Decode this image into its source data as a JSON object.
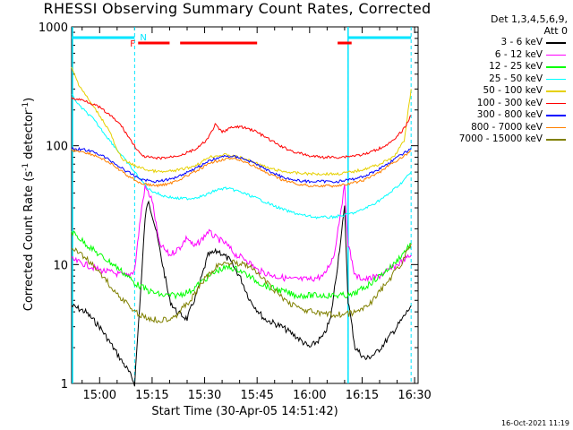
{
  "chart_data": {
    "type": "line",
    "title": "RHESSI Observing Summary Count Rates, Corrected",
    "xlabel": "Start Time (30-Apr-05 14:51:42)",
    "ylabel_main": "Corrected Count Rate (s",
    "ylabel_sup1": "-1",
    "ylabel_mid": " detector",
    "ylabel_sup2": "-1",
    "ylabel_end": ")",
    "detectors": "Det 1,3,4,5,6,9,",
    "attenuator": "Att 0",
    "timestamp": "16-Oct-2021 11:19",
    "x_range": [
      "14:52",
      "16:31"
    ],
    "y_scale": "log",
    "ylim": [
      1,
      1000
    ],
    "x_ticks": [
      "15:00",
      "15:15",
      "15:30",
      "15:45",
      "16:00",
      "16:15",
      "16:30"
    ],
    "y_ticks": [
      "1",
      "10",
      "100",
      "1000"
    ],
    "flags": {
      "night_label": "N",
      "flare_label": "F",
      "night_intervals": [
        [
          "14:52",
          "15:10"
        ],
        [
          "16:11",
          "16:29"
        ]
      ],
      "flare_intervals": [
        [
          "15:11",
          "15:20"
        ],
        [
          "15:23",
          "15:45"
        ],
        [
          "16:08",
          "16:12"
        ]
      ],
      "saa_boundaries": [
        "15:10",
        "16:11",
        "16:29"
      ]
    },
    "series": [
      {
        "name": "3 - 6 keV",
        "color": "#000000",
        "points": [
          [
            "14:52",
            4.5
          ],
          [
            "14:56",
            4
          ],
          [
            "15:00",
            3
          ],
          [
            "15:03",
            2.2
          ],
          [
            "15:06",
            1.6
          ],
          [
            "15:08",
            1.3
          ],
          [
            "15:10",
            1
          ],
          [
            "15:12",
            8
          ],
          [
            "15:13",
            25
          ],
          [
            "15:14",
            35
          ],
          [
            "15:16",
            20
          ],
          [
            "15:18",
            10
          ],
          [
            "15:20",
            5
          ],
          [
            "15:22",
            4
          ],
          [
            "15:25",
            3.5
          ],
          [
            "15:28",
            6
          ],
          [
            "15:31",
            12
          ],
          [
            "15:34",
            13
          ],
          [
            "15:37",
            11
          ],
          [
            "15:40",
            8
          ],
          [
            "15:43",
            5
          ],
          [
            "15:47",
            3.5
          ],
          [
            "15:52",
            3
          ],
          [
            "15:56",
            2.5
          ],
          [
            "16:00",
            2
          ],
          [
            "16:04",
            2.5
          ],
          [
            "16:06",
            3.5
          ],
          [
            "16:08",
            10
          ],
          [
            "16:10",
            30
          ],
          [
            "16:11",
            5
          ],
          [
            "16:13",
            2
          ],
          [
            "16:16",
            1.6
          ],
          [
            "16:19",
            1.8
          ],
          [
            "16:22",
            2.3
          ],
          [
            "16:25",
            3
          ],
          [
            "16:29",
            4.5
          ]
        ]
      },
      {
        "name": "6 - 12 keV",
        "color": "#ff00ff",
        "points": [
          [
            "14:52",
            11
          ],
          [
            "14:56",
            10
          ],
          [
            "15:00",
            9
          ],
          [
            "15:04",
            8.5
          ],
          [
            "15:08",
            8
          ],
          [
            "15:10",
            9
          ],
          [
            "15:12",
            30
          ],
          [
            "15:13",
            45
          ],
          [
            "15:15",
            35
          ],
          [
            "15:17",
            15
          ],
          [
            "15:20",
            12
          ],
          [
            "15:23",
            14
          ],
          [
            "15:25",
            17
          ],
          [
            "15:27",
            14
          ],
          [
            "15:29",
            16
          ],
          [
            "15:31",
            19
          ],
          [
            "15:33",
            17
          ],
          [
            "15:36",
            15
          ],
          [
            "15:39",
            12
          ],
          [
            "15:42",
            11
          ],
          [
            "15:45",
            9
          ],
          [
            "15:50",
            8
          ],
          [
            "15:55",
            7.5
          ],
          [
            "16:00",
            7.5
          ],
          [
            "16:04",
            8
          ],
          [
            "16:07",
            12
          ],
          [
            "16:09",
            30
          ],
          [
            "16:10",
            45
          ],
          [
            "16:11",
            15
          ],
          [
            "16:13",
            8
          ],
          [
            "16:16",
            7.5
          ],
          [
            "16:20",
            8
          ],
          [
            "16:24",
            9.5
          ],
          [
            "16:29",
            12
          ]
        ]
      },
      {
        "name": "12 - 25 keV",
        "color": "#00ff00",
        "points": [
          [
            "14:52",
            19
          ],
          [
            "14:56",
            15
          ],
          [
            "15:00",
            12
          ],
          [
            "15:04",
            10
          ],
          [
            "15:08",
            8
          ],
          [
            "15:10",
            7
          ],
          [
            "15:14",
            6
          ],
          [
            "15:18",
            5.5
          ],
          [
            "15:22",
            5.5
          ],
          [
            "15:26",
            6
          ],
          [
            "15:30",
            7.5
          ],
          [
            "15:34",
            9
          ],
          [
            "15:37",
            9.5
          ],
          [
            "15:40",
            9
          ],
          [
            "15:44",
            7.5
          ],
          [
            "15:48",
            6.5
          ],
          [
            "15:52",
            6
          ],
          [
            "15:56",
            5.5
          ],
          [
            "16:00",
            5.5
          ],
          [
            "16:04",
            5.5
          ],
          [
            "16:08",
            5.5
          ],
          [
            "16:12",
            5.5
          ],
          [
            "16:16",
            6.5
          ],
          [
            "16:20",
            8
          ],
          [
            "16:24",
            10
          ],
          [
            "16:29",
            15
          ]
        ]
      },
      {
        "name": "25 - 50 keV",
        "color": "#00ffff",
        "points": [
          [
            "14:52",
            270
          ],
          [
            "14:54",
            220
          ],
          [
            "14:58",
            170
          ],
          [
            "15:02",
            120
          ],
          [
            "15:06",
            85
          ],
          [
            "15:10",
            60
          ],
          [
            "15:14",
            43
          ],
          [
            "15:18",
            38
          ],
          [
            "15:22",
            36
          ],
          [
            "15:26",
            36
          ],
          [
            "15:30",
            38
          ],
          [
            "15:33",
            42
          ],
          [
            "15:36",
            44
          ],
          [
            "15:39",
            42
          ],
          [
            "15:42",
            39
          ],
          [
            "15:46",
            35
          ],
          [
            "15:50",
            31
          ],
          [
            "15:54",
            28
          ],
          [
            "15:58",
            26
          ],
          [
            "16:02",
            25
          ],
          [
            "16:06",
            25
          ],
          [
            "16:10",
            26
          ],
          [
            "16:14",
            28
          ],
          [
            "16:18",
            32
          ],
          [
            "16:22",
            38
          ],
          [
            "16:26",
            48
          ],
          [
            "16:29",
            60
          ]
        ]
      },
      {
        "name": "50 - 100 keV",
        "color": "#e6d000",
        "points": [
          [
            "14:52",
            450
          ],
          [
            "14:54",
            330
          ],
          [
            "14:57",
            240
          ],
          [
            "15:00",
            180
          ],
          [
            "15:03",
            130
          ],
          [
            "15:05",
            90
          ],
          [
            "15:07",
            75
          ],
          [
            "15:10",
            68
          ],
          [
            "15:14",
            62
          ],
          [
            "15:18",
            60
          ],
          [
            "15:22",
            62
          ],
          [
            "15:26",
            66
          ],
          [
            "15:29",
            72
          ],
          [
            "15:31",
            80
          ],
          [
            "15:33",
            82
          ],
          [
            "15:36",
            84
          ],
          [
            "15:40",
            80
          ],
          [
            "15:44",
            73
          ],
          [
            "15:48",
            65
          ],
          [
            "15:52",
            61
          ],
          [
            "15:56",
            59
          ],
          [
            "16:00",
            58
          ],
          [
            "16:04",
            58
          ],
          [
            "16:08",
            58
          ],
          [
            "16:12",
            60
          ],
          [
            "16:16",
            64
          ],
          [
            "16:20",
            70
          ],
          [
            "16:24",
            80
          ],
          [
            "16:27",
            110
          ],
          [
            "16:29",
            300
          ]
        ]
      },
      {
        "name": "100 - 300 keV",
        "color": "#ff0000",
        "points": [
          [
            "14:52",
            250
          ],
          [
            "14:56",
            240
          ],
          [
            "15:00",
            210
          ],
          [
            "15:03",
            180
          ],
          [
            "15:06",
            150
          ],
          [
            "15:09",
            110
          ],
          [
            "15:12",
            82
          ],
          [
            "15:16",
            78
          ],
          [
            "15:20",
            80
          ],
          [
            "15:24",
            85
          ],
          [
            "15:28",
            95
          ],
          [
            "15:31",
            115
          ],
          [
            "15:33",
            150
          ],
          [
            "15:35",
            130
          ],
          [
            "15:37",
            140
          ],
          [
            "15:40",
            145
          ],
          [
            "15:44",
            135
          ],
          [
            "15:48",
            115
          ],
          [
            "15:52",
            98
          ],
          [
            "15:56",
            88
          ],
          [
            "16:00",
            82
          ],
          [
            "16:04",
            80
          ],
          [
            "16:08",
            80
          ],
          [
            "16:12",
            82
          ],
          [
            "16:16",
            85
          ],
          [
            "16:20",
            95
          ],
          [
            "16:24",
            110
          ],
          [
            "16:27",
            140
          ],
          [
            "16:29",
            180
          ]
        ]
      },
      {
        "name": "300 - 800 keV",
        "color": "#0000ff",
        "points": [
          [
            "14:52",
            95
          ],
          [
            "14:56",
            92
          ],
          [
            "15:00",
            85
          ],
          [
            "15:04",
            72
          ],
          [
            "15:08",
            60
          ],
          [
            "15:12",
            52
          ],
          [
            "15:16",
            50
          ],
          [
            "15:20",
            52
          ],
          [
            "15:24",
            58
          ],
          [
            "15:28",
            66
          ],
          [
            "15:32",
            76
          ],
          [
            "15:36",
            82
          ],
          [
            "15:40",
            80
          ],
          [
            "15:44",
            72
          ],
          [
            "15:48",
            62
          ],
          [
            "15:52",
            55
          ],
          [
            "15:56",
            51
          ],
          [
            "16:00",
            50
          ],
          [
            "16:04",
            50
          ],
          [
            "16:08",
            50
          ],
          [
            "16:12",
            52
          ],
          [
            "16:16",
            56
          ],
          [
            "16:20",
            64
          ],
          [
            "16:24",
            76
          ],
          [
            "16:29",
            95
          ]
        ]
      },
      {
        "name": "800 - 7000 keV",
        "color": "#ff8000",
        "points": [
          [
            "14:52",
            92
          ],
          [
            "14:56",
            88
          ],
          [
            "15:00",
            80
          ],
          [
            "15:04",
            68
          ],
          [
            "15:08",
            56
          ],
          [
            "15:12",
            48
          ],
          [
            "15:16",
            46
          ],
          [
            "15:20",
            48
          ],
          [
            "15:24",
            54
          ],
          [
            "15:28",
            62
          ],
          [
            "15:32",
            72
          ],
          [
            "15:36",
            78
          ],
          [
            "15:40",
            76
          ],
          [
            "15:44",
            68
          ],
          [
            "15:48",
            58
          ],
          [
            "15:52",
            52
          ],
          [
            "15:56",
            48
          ],
          [
            "16:00",
            46
          ],
          [
            "16:04",
            46
          ],
          [
            "16:08",
            46
          ],
          [
            "16:12",
            48
          ],
          [
            "16:16",
            52
          ],
          [
            "16:20",
            60
          ],
          [
            "16:24",
            72
          ],
          [
            "16:29",
            90
          ]
        ]
      },
      {
        "name": "7000 - 15000 keV",
        "color": "#808000",
        "points": [
          [
            "14:52",
            14
          ],
          [
            "14:55",
            12
          ],
          [
            "14:58",
            10
          ],
          [
            "15:01",
            8
          ],
          [
            "15:04",
            6
          ],
          [
            "15:07",
            5
          ],
          [
            "15:10",
            4
          ],
          [
            "15:14",
            3.5
          ],
          [
            "15:18",
            3.4
          ],
          [
            "15:22",
            3.8
          ],
          [
            "15:26",
            5
          ],
          [
            "15:30",
            7.5
          ],
          [
            "15:34",
            10
          ],
          [
            "15:38",
            10.5
          ],
          [
            "15:42",
            10
          ],
          [
            "15:46",
            8
          ],
          [
            "15:50",
            6
          ],
          [
            "15:54",
            4.8
          ],
          [
            "15:58",
            4.2
          ],
          [
            "16:02",
            3.9
          ],
          [
            "16:06",
            3.8
          ],
          [
            "16:10",
            3.8
          ],
          [
            "16:14",
            4
          ],
          [
            "16:18",
            5
          ],
          [
            "16:22",
            7
          ],
          [
            "16:26",
            10
          ],
          [
            "16:29",
            15
          ]
        ]
      }
    ]
  }
}
